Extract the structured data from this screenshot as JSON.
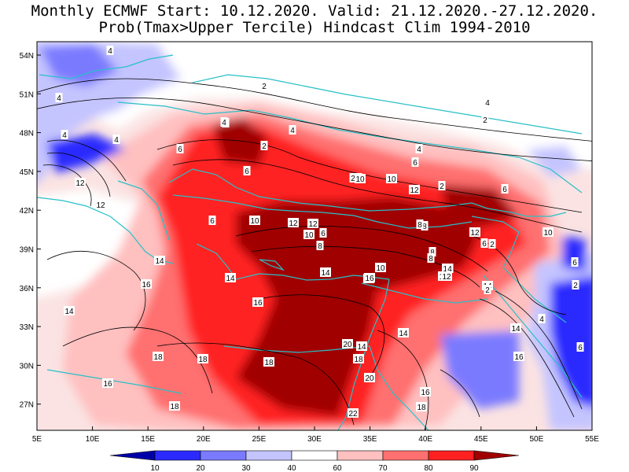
{
  "title": {
    "line1": "Monthly ECMWF Start: 10.12.2020. Valid: 21.12.2020.-27.12.2020.",
    "line2": "Prob(Tmax>Upper Tercile) Hindcast Clim 1994-2010"
  },
  "map": {
    "lon_ticks": [
      "5E",
      "10E",
      "15E",
      "20E",
      "25E",
      "30E",
      "35E",
      "40E",
      "45E",
      "50E",
      "55E"
    ],
    "lat_ticks": [
      "54N",
      "51N",
      "48N",
      "45N",
      "42N",
      "39N",
      "36N",
      "33N",
      "30N",
      "27N"
    ],
    "contour_labels": [
      "4",
      "4",
      "4",
      "4",
      "2",
      "6",
      "2",
      "4",
      "4",
      "4",
      "6",
      "4",
      "12",
      "2",
      "8",
      "10",
      "12",
      "6",
      "2",
      "6",
      "10",
      "2",
      "12",
      "8",
      "10",
      "6",
      "8",
      "10",
      "12",
      "2",
      "8",
      "12",
      "14",
      "10",
      "8",
      "8",
      "6",
      "14",
      "12",
      "10",
      "14",
      "16",
      "14",
      "16",
      "12",
      "18",
      "18",
      "16",
      "18",
      "20",
      "18",
      "14",
      "20",
      "16",
      "18",
      "22",
      "16",
      "14",
      "16",
      "18",
      "14",
      "4",
      "4",
      "6",
      "6",
      "2",
      "2",
      "12",
      "4",
      "2",
      "6",
      "10",
      "12",
      "14",
      "16"
    ]
  },
  "colorbar": {
    "labels": [
      "10",
      "20",
      "30",
      "40",
      "60",
      "70",
      "80",
      "90"
    ],
    "colors": [
      "#0000a8",
      "#2a2aff",
      "#7a7aff",
      "#c4c4ff",
      "#ffffff",
      "#ffc0c0",
      "#ff7070",
      "#ff2020",
      "#a00000"
    ]
  }
}
